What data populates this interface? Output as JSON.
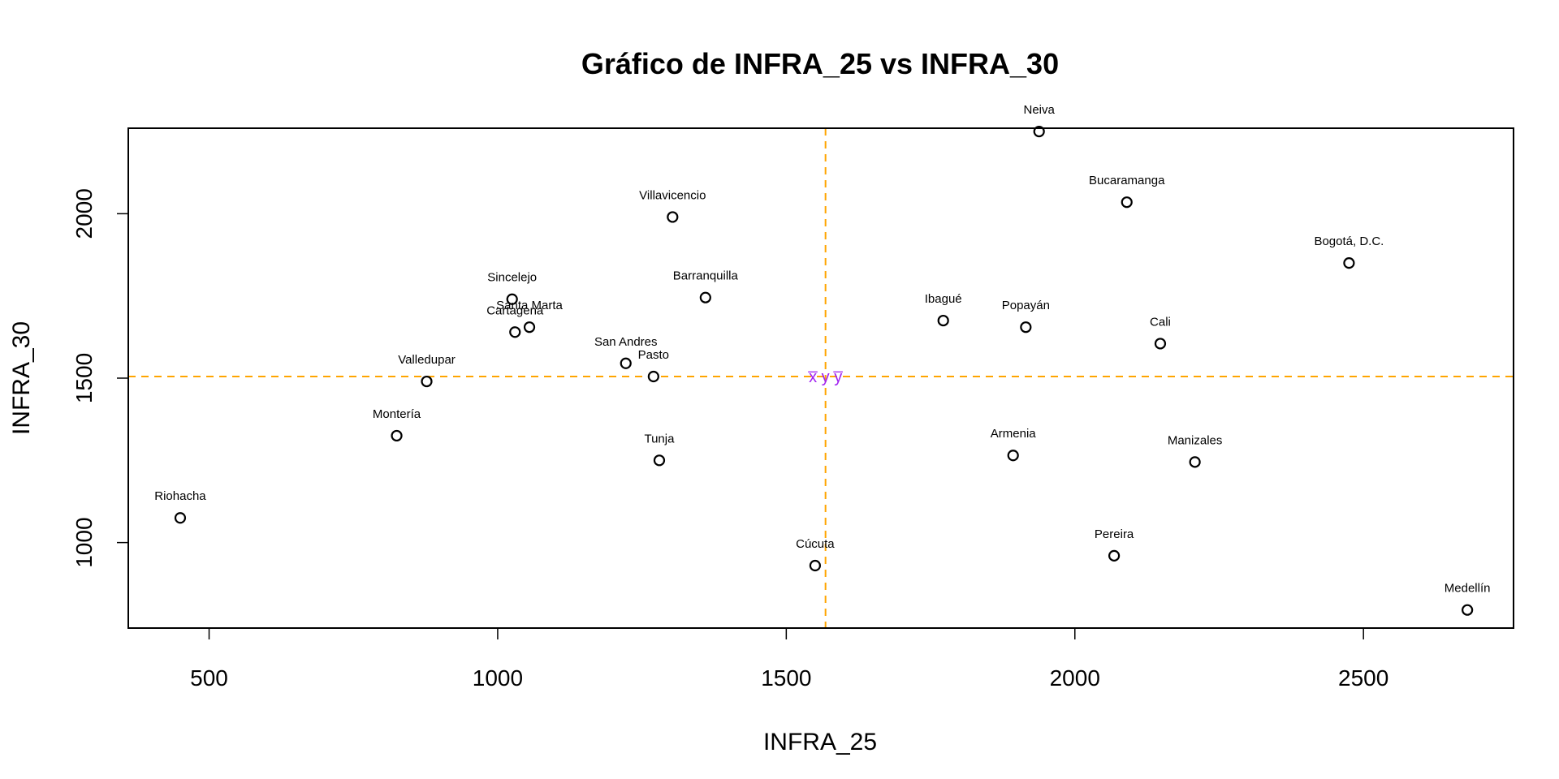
{
  "chart_data": {
    "type": "scatter",
    "title": "Gráfico de INFRA_25 vs INFRA_30",
    "xlabel": "INFRA_25",
    "ylabel": "INFRA_30",
    "xlim": [
      360,
      2760
    ],
    "ylim": [
      740,
      2260
    ],
    "xticks": [
      500,
      1000,
      1500,
      2000,
      2500
    ],
    "yticks": [
      1000,
      1500,
      2000
    ],
    "grid": false,
    "points": [
      {
        "label": "Riohacha",
        "x": 450,
        "y": 1075
      },
      {
        "label": "Montería",
        "x": 825,
        "y": 1325
      },
      {
        "label": "Valledupar",
        "x": 877,
        "y": 1490
      },
      {
        "label": "Sincelejo",
        "x": 1025,
        "y": 1740
      },
      {
        "label": "Cartagena",
        "x": 1030,
        "y": 1640
      },
      {
        "label": "Santa Marta",
        "x": 1055,
        "y": 1655
      },
      {
        "label": "Villavicencio",
        "x": 1303,
        "y": 1990
      },
      {
        "label": "Barranquilla",
        "x": 1360,
        "y": 1745
      },
      {
        "label": "San Andres",
        "x": 1222,
        "y": 1545
      },
      {
        "label": "Pasto",
        "x": 1270,
        "y": 1505
      },
      {
        "label": "Tunja",
        "x": 1280,
        "y": 1250
      },
      {
        "label": "Cúcuta",
        "x": 1550,
        "y": 930
      },
      {
        "label": "Ibagué",
        "x": 1772,
        "y": 1675
      },
      {
        "label": "Neiva",
        "x": 1938,
        "y": 2250
      },
      {
        "label": "Popayán",
        "x": 1915,
        "y": 1655
      },
      {
        "label": "Armenia",
        "x": 1893,
        "y": 1265
      },
      {
        "label": "Bucaramanga",
        "x": 2090,
        "y": 2035
      },
      {
        "label": "Pereira",
        "x": 2068,
        "y": 960
      },
      {
        "label": "Cali",
        "x": 2148,
        "y": 1605
      },
      {
        "label": "Manizales",
        "x": 2208,
        "y": 1245
      },
      {
        "label": "Bogotá, D.C.",
        "x": 2475,
        "y": 1850
      },
      {
        "label": "Medellín",
        "x": 2680,
        "y": 795
      }
    ],
    "mean_lines": {
      "x_mean": 1568,
      "y_mean": 1505,
      "color": "#FFA500",
      "style": "dashed",
      "label": "x̅ y y̅",
      "label_color": "#A020F0"
    }
  }
}
